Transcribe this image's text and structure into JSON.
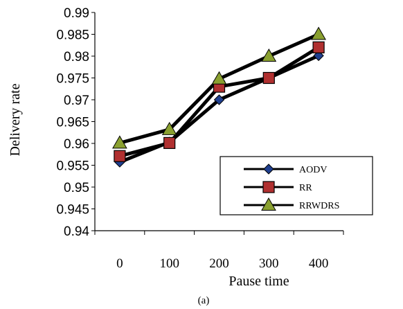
{
  "chart_data": {
    "type": "line",
    "title": "",
    "xlabel": "Pause time",
    "ylabel": "Delivery rate",
    "caption": "(a)",
    "categories": [
      "0",
      "100",
      "200",
      "300",
      "400"
    ],
    "yticks": [
      "0.94",
      "0.945",
      "0.95",
      "0.955",
      "0.96",
      "0.965",
      "0.97",
      "0.975",
      "0.98",
      "0.985",
      "0.99"
    ],
    "ylim": [
      0.94,
      0.99
    ],
    "grid": false,
    "legend_position": "bottom-right",
    "series": [
      {
        "name": "AODV",
        "marker": "diamond",
        "marker_color": "#1f3f8f",
        "values": [
          0.9557,
          0.9603,
          0.97,
          0.975,
          0.9801
        ]
      },
      {
        "name": "RR",
        "marker": "square",
        "marker_color": "#b03030",
        "values": [
          0.9571,
          0.9601,
          0.973,
          0.975,
          0.982
        ]
      },
      {
        "name": "RRWDRS",
        "marker": "triangle",
        "marker_color": "#8aa030",
        "values": [
          0.9601,
          0.9632,
          0.9748,
          0.98,
          0.985
        ]
      }
    ],
    "line_color": "#000000"
  }
}
